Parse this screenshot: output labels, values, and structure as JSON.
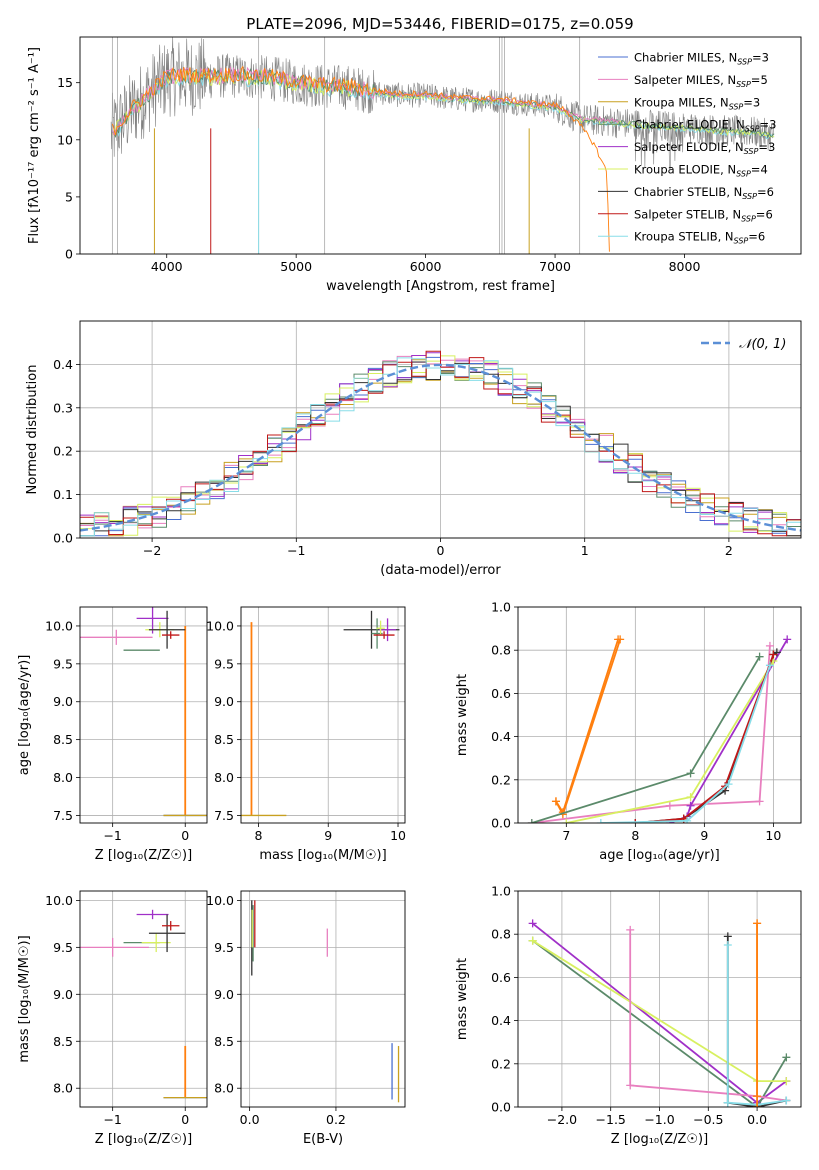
{
  "figure_title": "PLATE=2096, MJD=53446, FIBERID=0175, z=0.059",
  "colors": {
    "Chabrier MILES": "#4a6fd0",
    "Salpeter MILES": "#e87fbf",
    "Kroupa MILES": "#c8a020",
    "Chabrier ELODIE": "#5b8a6a",
    "Salpeter ELODIE": "#a030c8",
    "Kroupa ELODIE": "#d8f060",
    "Chabrier STELIB": "#333333",
    "Salpeter STELIB": "#c01818",
    "Kroupa STELIB": "#88dde8",
    "data": "#808080",
    "orange": "#ff7f0e",
    "normal": "#5b8fd6"
  },
  "chart_data": [
    {
      "type": "line",
      "title": "PLATE=2096, MJD=53446, FIBERID=0175, z=0.059",
      "xlabel": "wavelength [Angstrom, rest frame]",
      "ylabel": "Flux [fλ10⁻¹⁷ erg cm⁻² s⁻¹ A⁻¹]",
      "xlim": [
        3330,
        8900
      ],
      "ylim": [
        0,
        19
      ],
      "xticks": [
        "4000",
        "5000",
        "6000",
        "7000",
        "8000"
      ],
      "yticks": [
        "0",
        "5",
        "10",
        "15"
      ],
      "legend_position": "top-right",
      "legend": [
        {
          "name": "Chabrier MILES",
          "nssp": "3"
        },
        {
          "name": "Salpeter MILES",
          "nssp": "5"
        },
        {
          "name": "Kroupa MILES",
          "nssp": "3"
        },
        {
          "name": "Chabrier ELODIE",
          "nssp": "3"
        },
        {
          "name": "Salpeter ELODIE",
          "nssp": "3"
        },
        {
          "name": "Kroupa ELODIE",
          "nssp": "4"
        },
        {
          "name": "Chabrier STELIB",
          "nssp": "6"
        },
        {
          "name": "Salpeter STELIB",
          "nssp": "6"
        },
        {
          "name": "Kroupa STELIB",
          "nssp": "6"
        }
      ],
      "continuum": {
        "x": [
          3570,
          3650,
          3750,
          3900,
          4000,
          4100,
          4300,
          4500,
          4800,
          5000,
          5200,
          5400,
          5600,
          5800,
          6000,
          6200,
          6400,
          6600,
          6800,
          7000,
          7200,
          7400,
          7700,
          8000,
          8300,
          8500,
          8700
        ],
        "y": [
          10.5,
          11.5,
          12.8,
          14.4,
          15.4,
          15.6,
          15.5,
          15.6,
          15.4,
          15.0,
          14.7,
          14.6,
          14.2,
          13.9,
          13.9,
          13.6,
          13.5,
          13.4,
          13.1,
          12.9,
          11.8,
          11.6,
          11.3,
          11.1,
          10.8,
          10.7,
          10.4
        ]
      },
      "red_model_drop": {
        "x": [
          7100,
          7200,
          7300,
          7400,
          7420
        ],
        "y": [
          12.2,
          11.0,
          9.5,
          7.0,
          0.0
        ]
      }
    },
    {
      "type": "line",
      "xlabel": "(data-model)/error",
      "ylabel": "Normed distribution",
      "xlim": [
        -2.5,
        2.5
      ],
      "ylim": [
        0,
        0.5
      ],
      "xticks": [
        "−2",
        "−1",
        "0",
        "1",
        "2"
      ],
      "yticks": [
        "0.0",
        "0.1",
        "0.2",
        "0.3",
        "0.4"
      ],
      "legend": [
        "𝒩(0, 1)"
      ],
      "legend_position": "top-right",
      "bin_width": 0.1,
      "normal_mu": 0,
      "normal_sigma": 1
    },
    {
      "type": "scatter",
      "xlabel": "Z [log₁₀(Z/Z☉)]",
      "ylabel": "age  [log₁₀(age/yr)]",
      "xlim": [
        -1.45,
        0.3
      ],
      "ylim": [
        7.4,
        10.25
      ],
      "xticks": [
        "−1",
        "0"
      ],
      "yticks": [
        "7.5",
        "8.0",
        "8.5",
        "9.0",
        "9.5",
        "10.0"
      ],
      "points": [
        {
          "model": "Salpeter MILES",
          "x": -0.95,
          "y": 9.85,
          "xerr": 0.5,
          "yerr": 0.1
        },
        {
          "model": "Chabrier ELODIE",
          "x": -0.6,
          "y": 9.68,
          "xerr": 0.25,
          "yerr": 0.0
        },
        {
          "model": "Salpeter ELODIE",
          "x": -0.45,
          "y": 10.1,
          "xerr": 0.22,
          "yerr": 0.2
        },
        {
          "model": "Kroupa ELODIE",
          "x": -0.35,
          "y": 9.95,
          "xerr": 0.2,
          "yerr": 0.1
        },
        {
          "model": "Chabrier STELIB",
          "x": -0.25,
          "y": 9.95,
          "xerr": 0.25,
          "yerr": 0.25
        },
        {
          "model": "Salpeter STELIB",
          "x": -0.2,
          "y": 9.88,
          "xerr": 0.12,
          "yerr": 0.05
        },
        {
          "model": "Chabrier MILES",
          "x": 0.0,
          "y": 7.5,
          "xerr": 0.3,
          "yerr": 0.0
        },
        {
          "model": "Kroupa MILES",
          "x": 0.0,
          "y": 7.5,
          "xerr": 0.3,
          "yerr": 0.0
        }
      ],
      "orange_bar": {
        "x": 0.0,
        "y_from": 7.5,
        "y_to": 10.0
      }
    },
    {
      "type": "scatter",
      "xlabel": "mass [log₁₀(M/M☉)]",
      "xlim": [
        7.75,
        10.1
      ],
      "ylim": [
        7.4,
        10.25
      ],
      "xticks": [
        "8",
        "9",
        "10"
      ],
      "yticks": [
        "7.5",
        "8.0",
        "8.5",
        "9.0",
        "9.5",
        "10.0"
      ],
      "points": [
        {
          "model": "Chabrier STELIB",
          "x": 9.62,
          "y": 9.95,
          "xerr": 0.4,
          "yerr": 0.25
        },
        {
          "model": "Chabrier ELODIE",
          "x": 9.7,
          "y": 9.9,
          "xerr": 0.08,
          "yerr": 0.2
        },
        {
          "model": "Salpeter ELODIE",
          "x": 9.85,
          "y": 9.95,
          "xerr": 0.12,
          "yerr": 0.15
        },
        {
          "model": "Kroupa ELODIE",
          "x": 9.75,
          "y": 9.97,
          "xerr": 0.06,
          "yerr": 0.1
        },
        {
          "model": "Salpeter STELIB",
          "x": 9.8,
          "y": 9.88,
          "xerr": 0.15,
          "yerr": 0.05
        },
        {
          "model": "Kroupa MILES",
          "x": 7.9,
          "y": 7.5,
          "xerr": 0.5,
          "yerr": 0.0
        }
      ],
      "orange_bar": {
        "x": 7.9,
        "y_from": 7.5,
        "y_to": 10.05
      }
    },
    {
      "type": "line",
      "xlabel": "age  [log₁₀(age/yr)]",
      "ylabel": "mass weight",
      "xlim": [
        6.3,
        10.4
      ],
      "ylim": [
        0,
        1.0
      ],
      "xticks": [
        "7",
        "8",
        "9",
        "10"
      ],
      "yticks": [
        "0.0",
        "0.2",
        "0.4",
        "0.6",
        "0.8",
        "1.0"
      ],
      "series": [
        {
          "model": "Chabrier MILES",
          "x": [
            6.85,
            6.95,
            7.75
          ],
          "y": [
            0.1,
            0.05,
            0.85
          ]
        },
        {
          "model": "Kroupa MILES",
          "x": [
            6.85,
            6.95,
            7.78
          ],
          "y": [
            0.1,
            0.04,
            0.85
          ]
        },
        {
          "model": "Salpeter MILES",
          "x": [
            6.5,
            8.5,
            9.8,
            9.95
          ],
          "y": [
            0.0,
            0.08,
            0.1,
            0.82
          ]
        },
        {
          "model": "Chabrier ELODIE",
          "x": [
            6.5,
            8.8,
            9.8
          ],
          "y": [
            0.0,
            0.23,
            0.77
          ]
        },
        {
          "model": "Salpeter ELODIE",
          "x": [
            8.5,
            8.75,
            8.8,
            10.2
          ],
          "y": [
            0.0,
            0.03,
            0.08,
            0.85
          ]
        },
        {
          "model": "Kroupa ELODIE",
          "x": [
            7.0,
            8.8,
            10.0
          ],
          "y": [
            0.0,
            0.12,
            0.75
          ]
        },
        {
          "model": "Chabrier STELIB",
          "x": [
            8.0,
            8.7,
            9.3,
            10.0,
            10.05
          ],
          "y": [
            0.0,
            0.02,
            0.15,
            0.78,
            0.79
          ]
        },
        {
          "model": "Salpeter STELIB",
          "x": [
            8.0,
            8.7,
            9.3,
            10.0
          ],
          "y": [
            0.0,
            0.02,
            0.17,
            0.78
          ]
        },
        {
          "model": "Kroupa STELIB",
          "x": [
            7.5,
            8.75,
            9.35,
            9.95
          ],
          "y": [
            0.0,
            0.01,
            0.18,
            0.73
          ]
        }
      ]
    },
    {
      "type": "scatter",
      "xlabel": "Z [log₁₀(Z/Z☉)]",
      "ylabel": "mass [log₁₀(M/M☉)]",
      "xlim": [
        -1.45,
        0.3
      ],
      "ylim": [
        7.8,
        10.1
      ],
      "xticks": [
        "−1",
        "0"
      ],
      "yticks": [
        "8.0",
        "8.5",
        "9.0",
        "9.5",
        "10.0"
      ],
      "points": [
        {
          "model": "Salpeter MILES",
          "x": -1.0,
          "y": 9.5,
          "xerr": 0.5,
          "yerr": 0.1
        },
        {
          "model": "Chabrier ELODIE",
          "x": -0.6,
          "y": 9.55,
          "xerr": 0.25,
          "yerr": 0.0
        },
        {
          "model": "Salpeter ELODIE",
          "x": -0.45,
          "y": 9.85,
          "xerr": 0.22,
          "yerr": 0.05
        },
        {
          "model": "Kroupa ELODIE",
          "x": -0.4,
          "y": 9.55,
          "xerr": 0.2,
          "yerr": 0.1
        },
        {
          "model": "Chabrier STELIB",
          "x": -0.25,
          "y": 9.65,
          "xerr": 0.25,
          "yerr": 0.2
        },
        {
          "model": "Salpeter STELIB",
          "x": -0.2,
          "y": 9.73,
          "xerr": 0.12,
          "yerr": 0.05
        },
        {
          "model": "Chabrier MILES",
          "x": 0.0,
          "y": 7.9,
          "xerr": 0.3,
          "yerr": 0.0
        },
        {
          "model": "Kroupa MILES",
          "x": 0.0,
          "y": 7.9,
          "xerr": 0.3,
          "yerr": 0.0
        }
      ],
      "orange_bar": {
        "x": 0.0,
        "y_from": 7.9,
        "y_to": 8.45
      }
    },
    {
      "type": "scatter",
      "xlabel": "E(B-V)",
      "xlim": [
        -0.02,
        0.36
      ],
      "ylim": [
        7.8,
        10.1
      ],
      "xticks": [
        "0.0",
        "0.2"
      ],
      "yticks": [
        "8.0",
        "8.5",
        "9.0",
        "9.5",
        "10.0"
      ],
      "points": [
        {
          "model": "Chabrier STELIB",
          "x": 0.005,
          "y": 9.6,
          "xerr": 0.0,
          "yerr": 0.4
        },
        {
          "model": "Chabrier ELODIE",
          "x": 0.008,
          "y": 9.65,
          "xerr": 0.0,
          "yerr": 0.3
        },
        {
          "model": "Salpeter STELIB",
          "x": 0.012,
          "y": 9.75,
          "xerr": 0.0,
          "yerr": 0.25
        },
        {
          "model": "Kroupa ELODIE",
          "x": 0.006,
          "y": 9.7,
          "xerr": 0.0,
          "yerr": 0.2
        },
        {
          "model": "Salpeter MILES",
          "x": 0.18,
          "y": 9.55,
          "xerr": 0.0,
          "yerr": 0.15
        },
        {
          "model": "Chabrier MILES",
          "x": 0.33,
          "y": 8.18,
          "xerr": 0.0,
          "yerr": 0.3
        },
        {
          "model": "Kroupa MILES",
          "x": 0.345,
          "y": 8.15,
          "xerr": 0.0,
          "yerr": 0.3
        }
      ]
    },
    {
      "type": "line",
      "xlabel": "Z [log₁₀(Z/Z☉)]",
      "ylabel": "mass weight",
      "xlim": [
        -2.45,
        0.45
      ],
      "ylim": [
        0,
        1.0
      ],
      "xticks": [
        "−2.0",
        "−1.5",
        "−1.0",
        "−0.5",
        "0.0"
      ],
      "yticks": [
        "0.0",
        "0.2",
        "0.4",
        "0.6",
        "0.8",
        "1.0"
      ],
      "series": [
        {
          "model": "Salpeter ELODIE",
          "x": [
            -2.3,
            0.0,
            0.3
          ],
          "y": [
            0.85,
            0.02,
            0.12
          ]
        },
        {
          "model": "Chabrier ELODIE",
          "x": [
            -2.3,
            0.0,
            0.3
          ],
          "y": [
            0.77,
            0.0,
            0.23
          ]
        },
        {
          "model": "Kroupa ELODIE",
          "x": [
            -2.3,
            0.0,
            0.3
          ],
          "y": [
            0.77,
            0.12,
            0.12
          ]
        },
        {
          "model": "Salpeter MILES",
          "x": [
            -1.3,
            -1.3,
            0.0,
            0.3
          ],
          "y": [
            0.82,
            0.1,
            0.05,
            0.03
          ]
        },
        {
          "model": "Chabrier STELIB",
          "x": [
            -0.3,
            -0.3,
            0.0,
            0.3
          ],
          "y": [
            0.79,
            0.02,
            0.0,
            0.03
          ]
        },
        {
          "model": "Kroupa STELIB",
          "x": [
            -0.3,
            -0.3,
            0.0,
            0.3
          ],
          "y": [
            0.75,
            0.02,
            0.01,
            0.03
          ]
        },
        {
          "model": "Chabrier MILES",
          "x": [
            0.0,
            0.0
          ],
          "y": [
            0.85,
            0.0
          ]
        },
        {
          "model": "Kroupa MILES",
          "x": [
            0.0,
            0.0
          ],
          "y": [
            0.85,
            0.05
          ]
        }
      ]
    }
  ]
}
